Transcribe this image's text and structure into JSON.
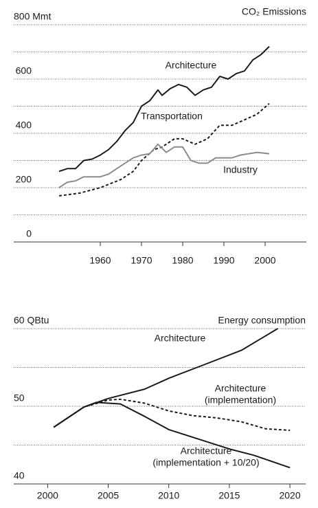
{
  "chart_data": [
    {
      "type": "line",
      "title": "CO₂ Emissions",
      "xlim": [
        1939,
        2010
      ],
      "xticks": [
        1960,
        1970,
        1980,
        1990,
        2000
      ],
      "ylim": [
        0,
        800
      ],
      "yticks": [
        0,
        200,
        400,
        600,
        {
          "value": 800,
          "label": "800 Mmt"
        }
      ],
      "yminor": [
        100,
        300,
        500,
        700
      ],
      "grid": true,
      "series": [
        {
          "name": [
            "Architecture"
          ],
          "color": "#1a1a1a",
          "dash": false,
          "x": [
            1950,
            1952,
            1954,
            1956,
            1958,
            1960,
            1962,
            1964,
            1966,
            1968,
            1970,
            1972,
            1974,
            1975,
            1977,
            1979,
            1981,
            1983,
            1985,
            1987,
            1989,
            1991,
            1993,
            1995,
            1997,
            1999,
            2001
          ],
          "values": [
            260,
            270,
            270,
            300,
            305,
            320,
            340,
            370,
            410,
            440,
            500,
            520,
            560,
            540,
            565,
            580,
            570,
            540,
            560,
            570,
            610,
            600,
            620,
            630,
            670,
            690,
            720
          ]
        },
        {
          "name": [
            "Transportation"
          ],
          "color": "#1a1a1a",
          "dash": true,
          "x": [
            1950,
            1955,
            1960,
            1965,
            1968,
            1970,
            1973,
            1975,
            1978,
            1980,
            1983,
            1986,
            1989,
            1992,
            1995,
            1998,
            2001
          ],
          "values": [
            170,
            180,
            200,
            230,
            260,
            300,
            340,
            350,
            380,
            380,
            360,
            380,
            430,
            430,
            450,
            470,
            510
          ]
        },
        {
          "name": [
            "Industry"
          ],
          "color": "#8c8c8c",
          "dash": false,
          "x": [
            1950,
            1952,
            1954,
            1956,
            1958,
            1960,
            1962,
            1964,
            1966,
            1968,
            1970,
            1972,
            1974,
            1976,
            1978,
            1980,
            1982,
            1984,
            1986,
            1988,
            1990,
            1992,
            1994,
            1996,
            1998,
            2001
          ],
          "values": [
            200,
            220,
            225,
            240,
            240,
            240,
            250,
            270,
            290,
            310,
            320,
            325,
            360,
            330,
            350,
            350,
            300,
            290,
            290,
            310,
            310,
            310,
            320,
            325,
            330,
            325
          ]
        }
      ]
    },
    {
      "type": "line",
      "title": "Energy consumption",
      "xlim": [
        1997.2,
        2021.3
      ],
      "xticks": [
        2000,
        2005,
        2010,
        2015,
        2020
      ],
      "ylim": [
        40,
        60
      ],
      "yticks": [
        40,
        50,
        {
          "value": 60,
          "label": "60 QBtu"
        }
      ],
      "yminor": [
        45,
        55
      ],
      "grid": true,
      "series": [
        {
          "name": [
            "Architecture"
          ],
          "color": "#1a1a1a",
          "dash": false,
          "x": [
            2000.5,
            2003,
            2005,
            2008,
            2010,
            2013,
            2016,
            2019
          ],
          "values": [
            47.3,
            49.9,
            51,
            52.2,
            53.6,
            55.4,
            57.2,
            60
          ]
        },
        {
          "name": [
            "Architecture",
            "(implementation)"
          ],
          "color": "#1a1a1a",
          "dash": true,
          "x": [
            2000.5,
            2003,
            2005,
            2006,
            2008,
            2010,
            2012,
            2014,
            2016,
            2018,
            2020
          ],
          "values": [
            47.3,
            49.9,
            50.8,
            50.9,
            50.4,
            49.4,
            48.8,
            48.5,
            48.0,
            47.1,
            46.9
          ]
        },
        {
          "name": [
            "Architecture",
            "(implementation + 10/20)"
          ],
          "color": "#1a1a1a",
          "dash": false,
          "x": [
            2000.5,
            2003,
            2004,
            2006,
            2008,
            2010,
            2012,
            2015,
            2017,
            2020
          ],
          "values": [
            47.3,
            49.9,
            50.5,
            50.3,
            48.7,
            47.0,
            46.0,
            44.5,
            43.7,
            42.1
          ]
        }
      ]
    }
  ]
}
